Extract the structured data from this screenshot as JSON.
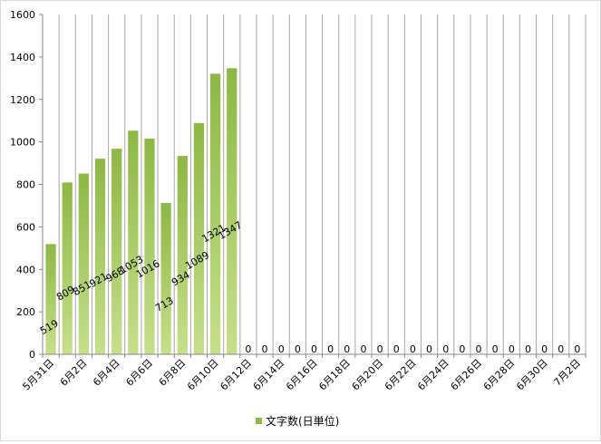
{
  "chart_data": {
    "type": "bar",
    "title": "",
    "xlabel": "",
    "ylabel": "",
    "ylim": [
      0,
      1600
    ],
    "yticks": [
      0,
      200,
      400,
      600,
      800,
      1000,
      1200,
      1400,
      1600
    ],
    "grid": "vertical",
    "legend_position": "bottom",
    "bar_color": "#8db843",
    "bar_color_light": "#c6e08a",
    "categories": [
      "5月31日",
      "6月1日",
      "6月2日",
      "6月3日",
      "6月4日",
      "6月5日",
      "6月6日",
      "6月7日",
      "6月8日",
      "6月9日",
      "6月10日",
      "6月11日",
      "6月12日",
      "6月13日",
      "6月14日",
      "6月15日",
      "6月16日",
      "6月17日",
      "6月18日",
      "6月19日",
      "6月20日",
      "6月21日",
      "6月22日",
      "6月23日",
      "6月24日",
      "6月25日",
      "6月26日",
      "6月27日",
      "6月28日",
      "6月29日",
      "6月30日",
      "7月1日",
      "7月2日"
    ],
    "tick_labels": [
      "5月31日",
      "6月2日",
      "6月4日",
      "6月6日",
      "6月8日",
      "6月10日",
      "6月12日",
      "6月14日",
      "6月16日",
      "6月18日",
      "6月20日",
      "6月22日",
      "6月24日",
      "6月26日",
      "6月28日",
      "6月30日",
      "7月2日"
    ],
    "series": [
      {
        "name": "文字数(日単位)",
        "values": [
          519,
          809,
          851,
          921,
          968,
          1053,
          1016,
          713,
          934,
          1089,
          1321,
          1347,
          0,
          0,
          0,
          0,
          0,
          0,
          0,
          0,
          0,
          0,
          0,
          0,
          0,
          0,
          0,
          0,
          0,
          0,
          0,
          0,
          0
        ]
      }
    ]
  }
}
